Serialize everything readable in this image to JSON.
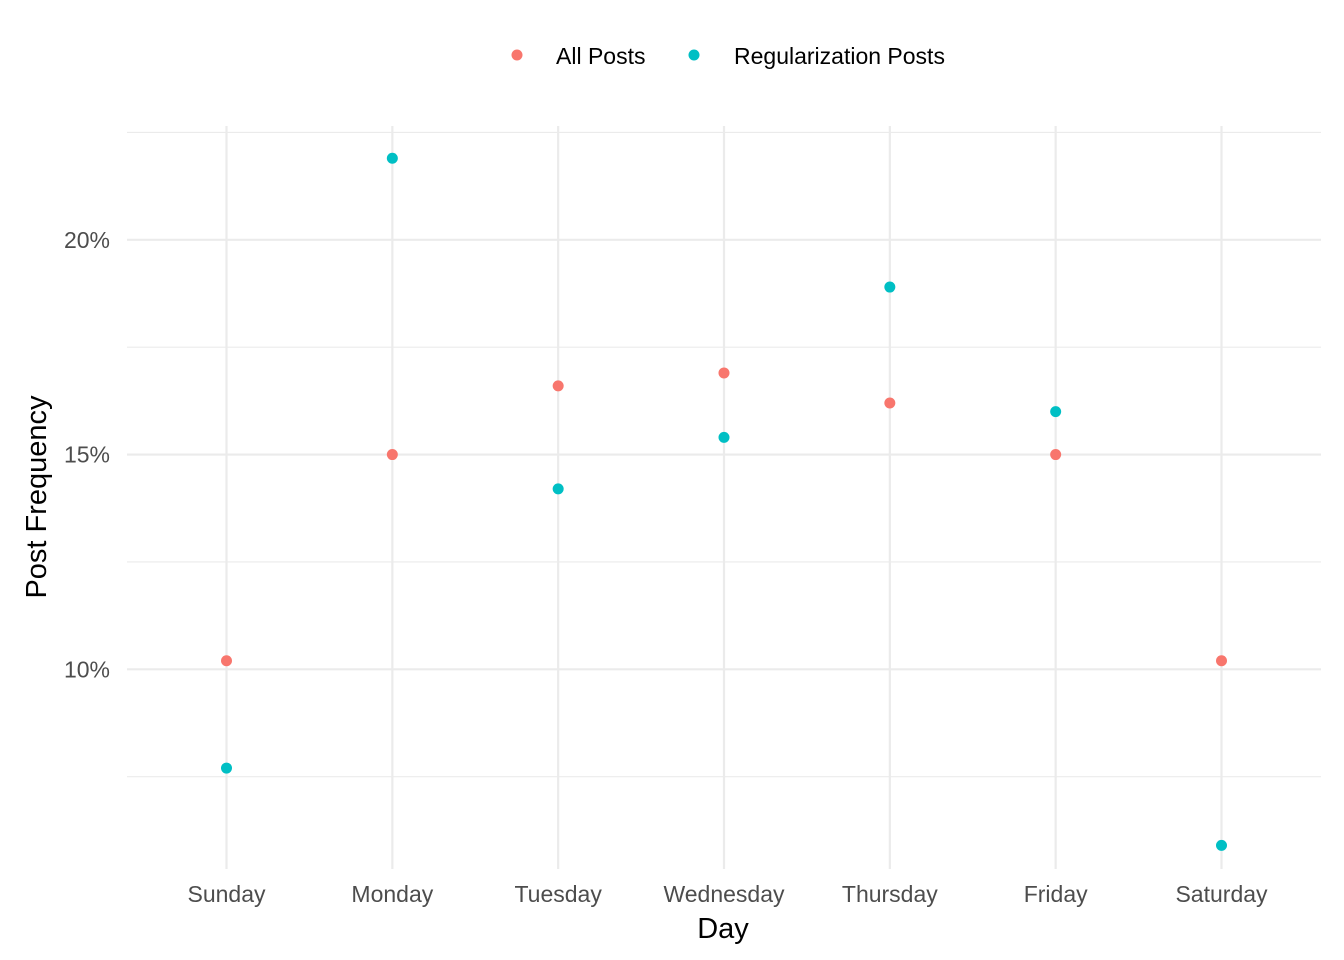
{
  "chart_data": {
    "type": "scatter",
    "title": "",
    "xlabel": "Day",
    "ylabel": "Post Frequency",
    "categories": [
      "Sunday",
      "Monday",
      "Tuesday",
      "Wednesday",
      "Thursday",
      "Friday",
      "Saturday"
    ],
    "y_unit": "percent",
    "ylim": [
      5.35,
      22.65
    ],
    "y_major_ticks": [
      10,
      15,
      20
    ],
    "y_tick_labels": [
      "10%",
      "15%",
      "20%"
    ],
    "y_minor_ticks": [
      7.5,
      12.5,
      17.5,
      22.5
    ],
    "grid": true,
    "legend_position": "top",
    "series": [
      {
        "name": "All Posts",
        "color": "#F8766D",
        "values": [
          10.2,
          15.0,
          16.6,
          16.9,
          16.2,
          15.0,
          10.2
        ]
      },
      {
        "name": "Regularization Posts",
        "color": "#00BFC4",
        "values": [
          7.7,
          21.9,
          14.2,
          15.4,
          18.9,
          16.0,
          5.9
        ]
      }
    ]
  }
}
